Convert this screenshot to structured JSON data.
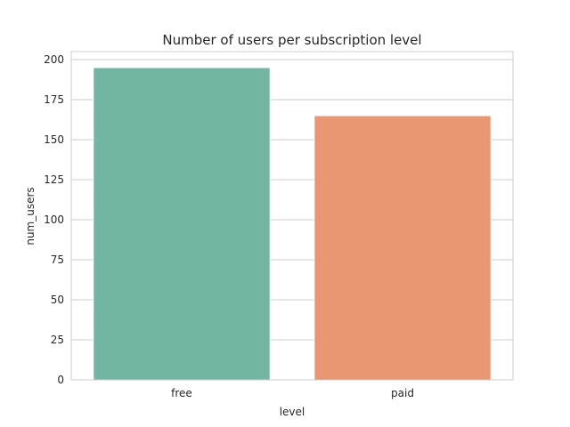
{
  "chart_data": {
    "type": "bar",
    "title": "Number of users per subscription level",
    "xlabel": "level",
    "ylabel": "num_users",
    "categories": [
      "free",
      "paid"
    ],
    "values": [
      195,
      165
    ],
    "colors": [
      "#72b5a1",
      "#e99673"
    ],
    "ylim": [
      0,
      205
    ],
    "yticks": [
      0,
      25,
      50,
      75,
      100,
      125,
      150,
      175,
      200
    ],
    "grid": true,
    "legend": "none"
  }
}
